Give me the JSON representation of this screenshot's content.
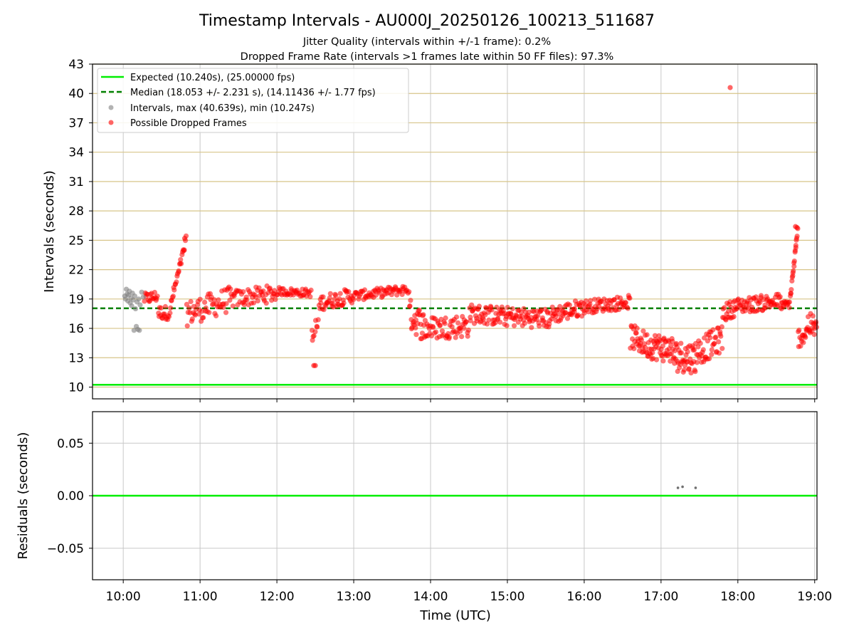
{
  "chart_data": [
    {
      "type": "scatter",
      "title": "Timestamp Intervals - AU000J_20250126_100213_511687",
      "subtitle_lines": [
        "Jitter Quality (intervals within +/-1 frame): 0.2%",
        "Dropped Frame Rate (intervals >1 frames late within 50 FF files): 97.3%"
      ],
      "ylabel": "Intervals (seconds)",
      "ylim": [
        8.8,
        43
      ],
      "yticks": [
        10,
        13,
        16,
        19,
        22,
        25,
        28,
        31,
        34,
        37,
        40,
        43
      ],
      "xlim_hours": [
        9.6,
        19.03
      ],
      "grid": "on",
      "legend_position": "upper-left",
      "expected_line": {
        "y": 10.24,
        "label": "Expected (10.240s), (25.00000 fps)",
        "color": "#00ee00"
      },
      "median_line": {
        "y": 18.053,
        "label": "Median (18.053 +/- 2.231 s), (14.11436 +/- 1.77 fps)",
        "color": "#008000"
      },
      "intervals_series": {
        "label": "Intervals, max (40.639s), min (10.247s)",
        "color": "#808080",
        "points": [
          [
            10.02,
            19.3
          ],
          [
            10.03,
            19.0
          ],
          [
            10.04,
            20.0
          ],
          [
            10.05,
            19.5
          ],
          [
            10.06,
            18.8
          ],
          [
            10.07,
            19.4
          ],
          [
            10.08,
            19.8
          ],
          [
            10.09,
            18.6
          ],
          [
            10.1,
            19.1
          ],
          [
            10.11,
            18.3
          ],
          [
            10.12,
            19.6
          ],
          [
            10.13,
            18.9
          ],
          [
            10.14,
            15.8
          ],
          [
            10.15,
            19.3
          ],
          [
            10.16,
            18.0
          ],
          [
            10.17,
            16.2
          ],
          [
            10.18,
            18.7
          ],
          [
            10.19,
            15.9
          ],
          [
            10.2,
            19.0
          ],
          [
            10.21,
            15.8
          ],
          [
            10.22,
            18.4
          ],
          [
            10.24,
            19.7
          ],
          [
            10.26,
            19.2
          ]
        ]
      },
      "dropped_series": {
        "label": "Possible Dropped Frames",
        "color": "#ff0000",
        "outliers": [
          [
            17.9,
            40.6
          ],
          [
            10.8,
            25.2
          ],
          [
            12.48,
            12.2
          ],
          [
            12.5,
            12.2
          ],
          [
            18.75,
            26.4
          ],
          [
            18.77,
            26.3
          ]
        ],
        "segments": [
          {
            "x0": 10.27,
            "x1": 10.45,
            "y0": 19.0,
            "y1": 19.3,
            "spread": 0.6,
            "n": 18
          },
          {
            "x0": 10.45,
            "x1": 10.62,
            "y0": 17.6,
            "y1": 17.6,
            "spread": 0.7,
            "n": 18
          },
          {
            "x0": 10.62,
            "x1": 10.82,
            "y0": 18.5,
            "y1": 25.0,
            "spread": 0.5,
            "n": 24
          },
          {
            "x0": 10.82,
            "x1": 11.4,
            "y0": 17.5,
            "y1": 19.0,
            "spread": 1.3,
            "n": 55
          },
          {
            "x0": 11.4,
            "x1": 12.0,
            "y0": 19.0,
            "y1": 19.6,
            "spread": 0.9,
            "n": 55
          },
          {
            "x0": 12.0,
            "x1": 12.45,
            "y0": 19.8,
            "y1": 19.6,
            "spread": 0.4,
            "n": 40
          },
          {
            "x0": 12.45,
            "x1": 12.55,
            "y0": 14.5,
            "y1": 17.0,
            "spread": 1.5,
            "n": 10
          },
          {
            "x0": 12.55,
            "x1": 13.0,
            "y0": 18.6,
            "y1": 19.4,
            "spread": 0.8,
            "n": 45
          },
          {
            "x0": 13.0,
            "x1": 13.72,
            "y0": 19.3,
            "y1": 20.0,
            "spread": 0.5,
            "n": 65
          },
          {
            "x0": 13.72,
            "x1": 13.95,
            "y0": 17.5,
            "y1": 16.0,
            "spread": 1.6,
            "n": 30
          },
          {
            "x0": 13.95,
            "x1": 14.5,
            "y0": 16.0,
            "y1": 16.3,
            "spread": 1.2,
            "n": 60
          },
          {
            "x0": 14.5,
            "x1": 15.0,
            "y0": 17.5,
            "y1": 17.2,
            "spread": 1.0,
            "n": 55
          },
          {
            "x0": 15.0,
            "x1": 15.55,
            "y0": 17.2,
            "y1": 17.0,
            "spread": 1.0,
            "n": 60
          },
          {
            "x0": 15.55,
            "x1": 16.0,
            "y0": 17.3,
            "y1": 18.2,
            "spread": 0.9,
            "n": 50
          },
          {
            "x0": 16.0,
            "x1": 16.6,
            "y0": 18.2,
            "y1": 18.7,
            "spread": 0.7,
            "n": 60
          },
          {
            "x0": 16.6,
            "x1": 16.85,
            "y0": 15.2,
            "y1": 14.2,
            "spread": 1.3,
            "n": 35
          },
          {
            "x0": 16.85,
            "x1": 17.15,
            "y0": 14.3,
            "y1": 13.8,
            "spread": 1.4,
            "n": 45
          },
          {
            "x0": 17.15,
            "x1": 17.45,
            "y0": 13.2,
            "y1": 13.0,
            "spread": 1.6,
            "n": 45
          },
          {
            "x0": 17.45,
            "x1": 17.8,
            "y0": 13.5,
            "y1": 15.0,
            "spread": 1.4,
            "n": 45
          },
          {
            "x0": 17.8,
            "x1": 18.0,
            "y0": 17.5,
            "y1": 18.3,
            "spread": 0.9,
            "n": 25
          },
          {
            "x0": 18.0,
            "x1": 18.55,
            "y0": 18.3,
            "y1": 18.8,
            "spread": 0.8,
            "n": 60
          },
          {
            "x0": 18.55,
            "x1": 18.68,
            "y0": 18.3,
            "y1": 18.5,
            "spread": 0.4,
            "n": 15
          },
          {
            "x0": 18.68,
            "x1": 18.78,
            "y0": 19.0,
            "y1": 26.0,
            "spread": 0.4,
            "n": 20
          },
          {
            "x0": 18.78,
            "x1": 18.9,
            "y0": 15.0,
            "y1": 15.5,
            "spread": 1.0,
            "n": 15
          },
          {
            "x0": 18.9,
            "x1": 19.03,
            "y0": 16.5,
            "y1": 16.0,
            "spread": 1.2,
            "n": 18
          }
        ]
      }
    },
    {
      "type": "scatter",
      "xlabel": "Time (UTC)",
      "ylabel": "Residuals (seconds)",
      "ylim": [
        -0.08,
        0.08
      ],
      "yticks": [
        0.05,
        0.0,
        -0.05
      ],
      "ytick_labels": [
        "0.05",
        "0.00",
        "−0.05"
      ],
      "xticks_hours": [
        10,
        11,
        12,
        13,
        14,
        15,
        16,
        17,
        18,
        19
      ],
      "xtick_labels": [
        "10:00",
        "11:00",
        "12:00",
        "13:00",
        "14:00",
        "15:00",
        "16:00",
        "17:00",
        "18:00",
        "19:00"
      ],
      "xlim_hours": [
        9.6,
        19.03
      ],
      "grid": "on",
      "zero_line": {
        "y": 0.0,
        "color": "#00ee00"
      },
      "residual_points": [
        [
          17.22,
          0.0075
        ],
        [
          17.28,
          0.0085
        ],
        [
          17.45,
          0.0075
        ]
      ],
      "residual_color": "#707070"
    }
  ]
}
